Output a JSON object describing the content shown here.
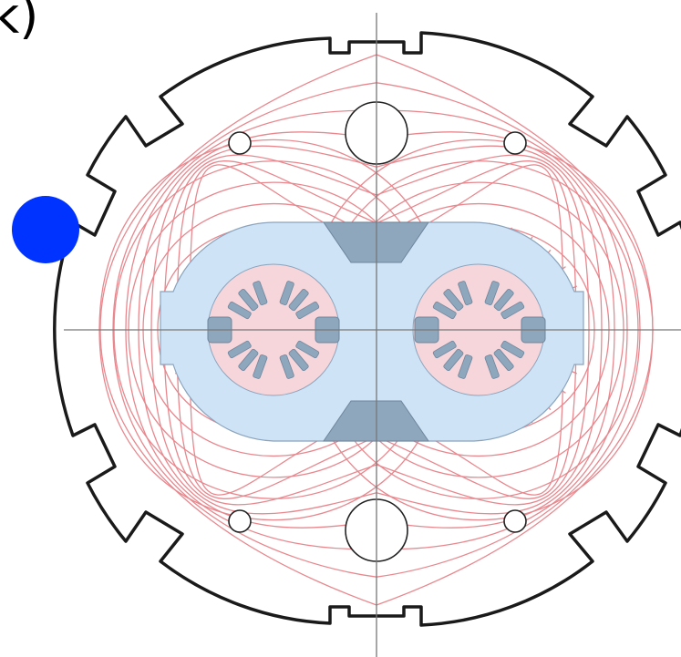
{
  "panel_label": "k)",
  "colors": {
    "background": "#ffffff",
    "yoke_outline": "#1a1a1a",
    "flux_lines": "#e8888e",
    "collar": "#cfe3f6",
    "collar_outline": "#8aa4bd",
    "iron_insert": "#8fa7bd",
    "coil_region": "#f6d6db",
    "axis_lines": "#777777",
    "marker": "#0033ff"
  },
  "icons": {
    "marker": "blue-dot"
  }
}
